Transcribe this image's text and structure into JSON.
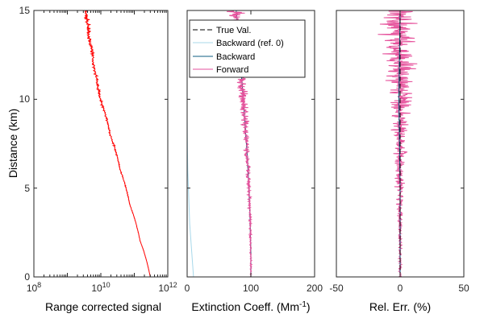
{
  "chart_data": [
    {
      "type": "line",
      "panel": "left",
      "xscale": "log",
      "xlabel": "Range corrected signal",
      "ylabel": "Distance (km)",
      "xlim": [
        100000000,
        1000000000000
      ],
      "ylim": [
        0,
        15
      ],
      "xticks": [
        {
          "base": "10",
          "exp": "8"
        },
        {
          "base": "10",
          "exp": "10"
        },
        {
          "base": "10",
          "exp": "12"
        }
      ],
      "yticks": [
        "0",
        "5",
        "10",
        "15"
      ],
      "series": [
        {
          "color": "#ff0000",
          "points": [
            [
              300000000000,
              0
            ],
            [
              150000000000,
              2
            ],
            [
              75000000000,
              4
            ],
            [
              38000000000,
              6
            ],
            [
              19000000000,
              8
            ],
            [
              9500000000,
              10
            ],
            [
              6000000000,
              12
            ],
            [
              4500000000,
              13.5
            ],
            [
              3500000000,
              15
            ]
          ],
          "noise": "increasing-with-distance"
        }
      ]
    },
    {
      "type": "line",
      "panel": "middle",
      "xlabel": "Extinction Coeff. (Mm",
      "xlabel_sup": "-1",
      "xlabel_end": ")",
      "xlim": [
        0,
        200
      ],
      "ylim": [
        0,
        15
      ],
      "xticks": [
        "0",
        "100",
        "200"
      ],
      "series": [
        {
          "name": "True Val.",
          "color": "#000000",
          "style": "dashed",
          "points": [
            [
              100,
              0
            ],
            [
              100,
              1
            ],
            [
              99,
              3
            ],
            [
              97,
              5
            ],
            [
              94,
              7
            ],
            [
              90,
              9
            ],
            [
              86,
              11
            ],
            [
              82,
              13
            ],
            [
              77,
              15
            ]
          ]
        },
        {
          "name": "Backward (ref. 0)",
          "color": "#a8d8ea",
          "style": "solid",
          "points": [
            [
              10,
              0
            ],
            [
              8,
              1
            ],
            [
              6,
              2
            ],
            [
              4,
              3
            ],
            [
              3,
              4
            ],
            [
              2,
              5
            ],
            [
              1,
              6
            ],
            [
              0.5,
              7
            ],
            [
              0.2,
              8
            ],
            [
              0,
              9
            ]
          ]
        },
        {
          "name": "Backward",
          "color": "#0d5c80",
          "style": "solid",
          "points": [
            [
              100,
              0
            ],
            [
              100,
              1
            ],
            [
              99,
              3
            ],
            [
              97,
              5
            ],
            [
              94,
              7
            ],
            [
              90,
              9
            ],
            [
              86,
              11
            ],
            [
              82,
              13
            ],
            [
              77,
              15
            ]
          ]
        },
        {
          "name": "Forward",
          "color": "#e6529c",
          "style": "solid",
          "points": [
            [
              100,
              0
            ],
            [
              100,
              1
            ],
            [
              99,
              3
            ],
            [
              97,
              5
            ],
            [
              94,
              7
            ],
            [
              90,
              9
            ],
            [
              86,
              11
            ],
            [
              82,
              13
            ],
            [
              77,
              15
            ]
          ],
          "noise": "increasing-with-distance"
        }
      ]
    },
    {
      "type": "line",
      "panel": "right",
      "xlabel": "Rel. Err. (%)",
      "xlim": [
        -50,
        50
      ],
      "ylim": [
        0,
        15
      ],
      "xticks": [
        "-50",
        "0",
        "50"
      ],
      "series": [
        {
          "color": "#e6529c",
          "style": "solid",
          "points": [
            [
              0,
              0
            ],
            [
              0,
              15
            ]
          ],
          "noise": "increasing-with-distance"
        },
        {
          "color": "#0d5c80",
          "style": "solid",
          "points": [
            [
              0,
              0
            ],
            [
              0,
              5
            ],
            [
              -1,
              10
            ],
            [
              0,
              15
            ]
          ]
        },
        {
          "color": "#000000",
          "style": "dashed",
          "points": [
            [
              0,
              0
            ],
            [
              0,
              15
            ]
          ]
        }
      ]
    }
  ]
}
